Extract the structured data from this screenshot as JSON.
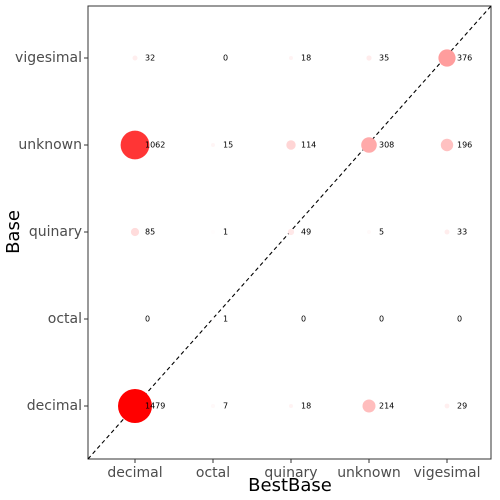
{
  "chart_data": {
    "type": "scatter",
    "xlabel": "BestBase",
    "ylabel": "Base",
    "x_categories": [
      "decimal",
      "octal",
      "quinary",
      "unknown",
      "vigesimal"
    ],
    "y_categories": [
      "decimal",
      "octal",
      "quinary",
      "unknown",
      "vigesimal"
    ],
    "grid": false,
    "reference_line": "diagonal dashed y=x",
    "fill_scale": {
      "low": "#ffffff",
      "high": "#ff0000",
      "max": 1479
    },
    "points": [
      {
        "x": "decimal",
        "y": "vigesimal",
        "value": 32,
        "label": "32"
      },
      {
        "x": "octal",
        "y": "vigesimal",
        "value": 0,
        "label": "0"
      },
      {
        "x": "quinary",
        "y": "vigesimal",
        "value": 18,
        "label": "18"
      },
      {
        "x": "unknown",
        "y": "vigesimal",
        "value": 35,
        "label": "35"
      },
      {
        "x": "vigesimal",
        "y": "vigesimal",
        "value": 376,
        "label": "376"
      },
      {
        "x": "decimal",
        "y": "unknown",
        "value": 1062,
        "label": "1062"
      },
      {
        "x": "octal",
        "y": "unknown",
        "value": 15,
        "label": "15"
      },
      {
        "x": "quinary",
        "y": "unknown",
        "value": 114,
        "label": "114"
      },
      {
        "x": "unknown",
        "y": "unknown",
        "value": 308,
        "label": "308"
      },
      {
        "x": "vigesimal",
        "y": "unknown",
        "value": 196,
        "label": "196"
      },
      {
        "x": "decimal",
        "y": "quinary",
        "value": 85,
        "label": "85"
      },
      {
        "x": "octal",
        "y": "quinary",
        "value": 1,
        "label": "1"
      },
      {
        "x": "quinary",
        "y": "quinary",
        "value": 49,
        "label": "49"
      },
      {
        "x": "unknown",
        "y": "quinary",
        "value": 5,
        "label": "5"
      },
      {
        "x": "vigesimal",
        "y": "quinary",
        "value": 33,
        "label": "33"
      },
      {
        "x": "decimal",
        "y": "octal",
        "value": 0,
        "label": "0"
      },
      {
        "x": "octal",
        "y": "octal",
        "value": 1,
        "label": "1"
      },
      {
        "x": "quinary",
        "y": "octal",
        "value": 0,
        "label": "0"
      },
      {
        "x": "unknown",
        "y": "octal",
        "value": 0,
        "label": "0"
      },
      {
        "x": "vigesimal",
        "y": "octal",
        "value": 0,
        "label": "0"
      },
      {
        "x": "decimal",
        "y": "decimal",
        "value": 1479,
        "label": "1479"
      },
      {
        "x": "octal",
        "y": "decimal",
        "value": 7,
        "label": "7"
      },
      {
        "x": "quinary",
        "y": "decimal",
        "value": 18,
        "label": "18"
      },
      {
        "x": "unknown",
        "y": "decimal",
        "value": 214,
        "label": "214"
      },
      {
        "x": "vigesimal",
        "y": "decimal",
        "value": 29,
        "label": "29"
      }
    ]
  }
}
